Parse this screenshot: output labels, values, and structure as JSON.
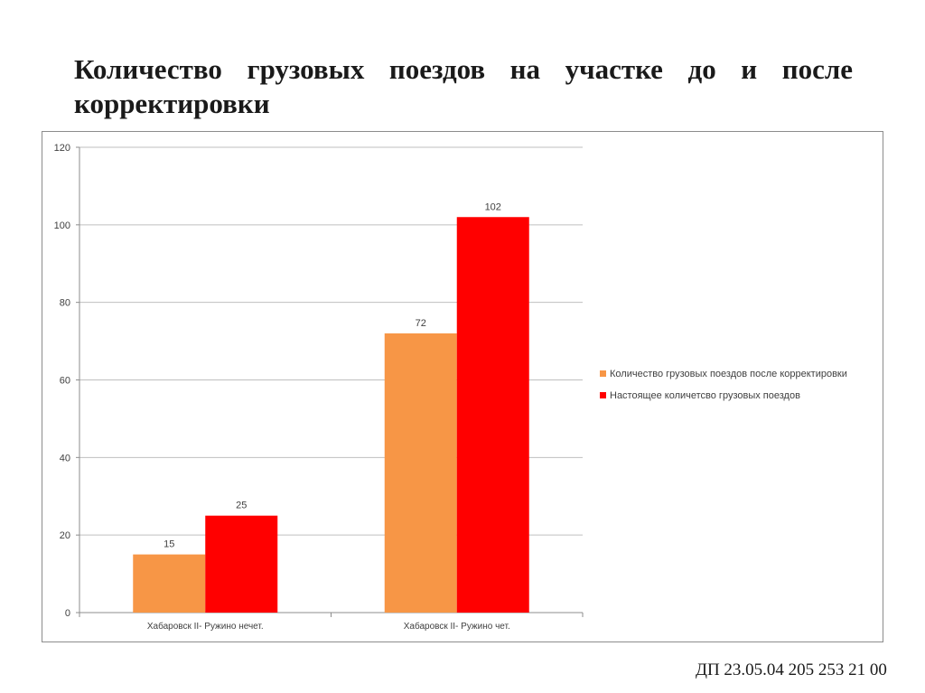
{
  "slide": {
    "title": "Количество грузовых поездов на участке до и после корректировки",
    "footer_code": "ДП 23.05.04  205 253 21 00"
  },
  "colors": {
    "series_after": "#F79646",
    "series_current": "#FF0000",
    "gridline": "#bfbfbf",
    "axis": "#8c8c8c",
    "text": "#404040"
  },
  "chart_data": {
    "type": "bar",
    "title": "",
    "xlabel": "",
    "ylabel": "",
    "ylim": [
      0,
      120
    ],
    "yticks": [
      0,
      20,
      40,
      60,
      80,
      100,
      120
    ],
    "grid": true,
    "legend_position": "right",
    "categories": [
      "Хабаровск II- Ружино нечет.",
      "Хабаровск II- Ружино чет."
    ],
    "series": [
      {
        "name": "Количество грузовых поездов после корректировки",
        "color": "#F79646",
        "values": [
          15,
          72
        ]
      },
      {
        "name": "Настоящее количетсво грузовых поездов",
        "color": "#FF0000",
        "values": [
          25,
          102
        ]
      }
    ]
  }
}
